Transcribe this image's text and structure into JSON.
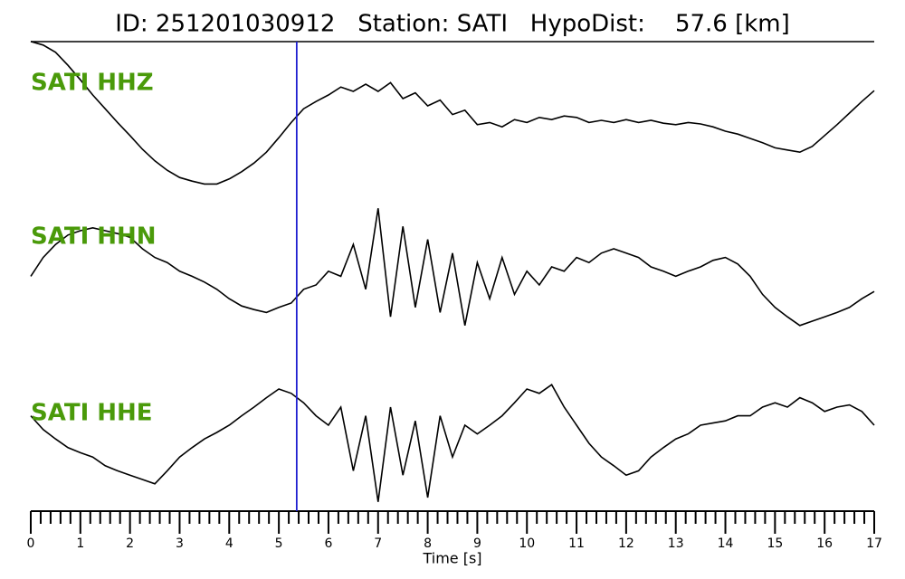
{
  "chart_data": {
    "type": "line",
    "title": "ID: 251201030912   Station: SATI   HypoDist:    57.6 [km]",
    "xlabel": "Time [s]",
    "xlim": [
      0,
      17
    ],
    "xticks": [
      0,
      1,
      2,
      3,
      4,
      5,
      6,
      7,
      8,
      9,
      10,
      11,
      12,
      13,
      14,
      15,
      16,
      17
    ],
    "xminorticks": [
      0.2,
      0.4,
      0.6,
      0.8,
      1.2,
      1.4,
      1.6,
      1.8,
      2.2,
      2.4,
      2.6,
      2.8,
      3.2,
      3.4,
      3.6,
      3.8,
      4.2,
      4.4,
      4.6,
      4.8,
      5.2,
      5.4,
      5.6,
      5.8,
      6.2,
      6.4,
      6.6,
      6.8,
      7.2,
      7.4,
      7.6,
      7.8,
      8.2,
      8.4,
      8.6,
      8.8,
      9.2,
      9.4,
      9.6,
      9.8,
      10.2,
      10.4,
      10.6,
      10.8,
      11.2,
      11.4,
      11.6,
      11.8,
      12.2,
      12.4,
      12.6,
      12.8,
      13.2,
      13.4,
      13.6,
      13.8,
      14.2,
      14.4,
      14.6,
      14.8,
      15.2,
      15.4,
      15.6,
      15.8,
      16.2,
      16.4,
      16.6,
      16.8
    ],
    "ylim": [
      -1,
      1
    ],
    "label_color": "#4a9a0a",
    "marker": {
      "x": 5.36,
      "color": "#1f1fd0"
    },
    "x": [
      0,
      0.25,
      0.5,
      0.75,
      1,
      1.25,
      1.5,
      1.75,
      2,
      2.25,
      2.5,
      2.75,
      3,
      3.25,
      3.5,
      3.75,
      4,
      4.25,
      4.5,
      4.75,
      5,
      5.25,
      5.5,
      5.75,
      6,
      6.25,
      6.5,
      6.75,
      7,
      7.25,
      7.5,
      7.75,
      8,
      8.25,
      8.5,
      8.75,
      9,
      9.25,
      9.5,
      9.75,
      10,
      10.25,
      10.5,
      10.75,
      11,
      11.25,
      11.5,
      11.75,
      12,
      12.25,
      12.5,
      12.75,
      13,
      13.25,
      13.5,
      13.75,
      14,
      14.25,
      14.5,
      14.75,
      15,
      15.25,
      15.5,
      15.75,
      16,
      16.25,
      16.5,
      16.75,
      17
    ],
    "series": [
      {
        "name": "SATI HHZ",
        "color": "#000000",
        "values": [
          0.99,
          0.94,
          0.84,
          0.66,
          0.46,
          0.25,
          0.06,
          -0.13,
          -0.31,
          -0.5,
          -0.66,
          -0.79,
          -0.89,
          -0.94,
          -0.98,
          -0.98,
          -0.91,
          -0.81,
          -0.69,
          -0.54,
          -0.34,
          -0.13,
          0.06,
          0.16,
          0.25,
          0.36,
          0.3,
          0.4,
          0.3,
          0.42,
          0.2,
          0.28,
          0.1,
          0.18,
          -0.02,
          0.04,
          -0.16,
          -0.13,
          -0.19,
          -0.09,
          -0.13,
          -0.06,
          -0.09,
          -0.04,
          -0.06,
          -0.13,
          -0.1,
          -0.13,
          -0.09,
          -0.13,
          -0.1,
          -0.14,
          -0.16,
          -0.13,
          -0.15,
          -0.19,
          -0.25,
          -0.29,
          -0.35,
          -0.41,
          -0.48,
          -0.51,
          -0.54,
          -0.46,
          -0.31,
          -0.16,
          0,
          0.16,
          0.31
        ]
      },
      {
        "name": "SATI HHN",
        "color": "#000000",
        "values": [
          -0.13,
          0.13,
          0.31,
          0.44,
          0.5,
          0.54,
          0.5,
          0.46,
          0.41,
          0.25,
          0.13,
          0.06,
          -0.06,
          -0.13,
          -0.21,
          -0.31,
          -0.44,
          -0.54,
          -0.59,
          -0.63,
          -0.56,
          -0.5,
          -0.31,
          -0.25,
          -0.06,
          -0.13,
          0.31,
          -0.31,
          0.81,
          -0.69,
          0.56,
          -0.56,
          0.38,
          -0.63,
          0.19,
          -0.81,
          0.06,
          -0.44,
          0.13,
          -0.38,
          -0.06,
          -0.25,
          0,
          -0.06,
          0.13,
          0.06,
          0.19,
          0.25,
          0.19,
          0.13,
          0,
          -0.06,
          -0.13,
          -0.06,
          0,
          0.09,
          0.13,
          0.04,
          -0.13,
          -0.38,
          -0.56,
          -0.69,
          -0.81,
          -0.75,
          -0.69,
          -0.63,
          -0.56,
          -0.44,
          -0.34
        ]
      },
      {
        "name": "SATI HHE",
        "color": "#000000",
        "values": [
          0.38,
          0.19,
          0.06,
          -0.06,
          -0.13,
          -0.19,
          -0.31,
          -0.38,
          -0.44,
          -0.5,
          -0.56,
          -0.38,
          -0.19,
          -0.06,
          0.06,
          0.15,
          0.25,
          0.38,
          0.5,
          0.63,
          0.75,
          0.69,
          0.56,
          0.38,
          0.25,
          0.5,
          -0.38,
          0.38,
          -0.81,
          0.5,
          -0.44,
          0.31,
          -0.75,
          0.38,
          -0.19,
          0.25,
          0.13,
          0.25,
          0.38,
          0.56,
          0.75,
          0.69,
          0.81,
          0.5,
          0.25,
          0,
          -0.19,
          -0.31,
          -0.44,
          -0.38,
          -0.19,
          -0.06,
          0.06,
          0.13,
          0.25,
          0.28,
          0.31,
          0.38,
          0.38,
          0.5,
          0.56,
          0.5,
          0.63,
          0.56,
          0.44,
          0.5,
          0.53,
          0.44,
          0.25
        ]
      }
    ]
  }
}
